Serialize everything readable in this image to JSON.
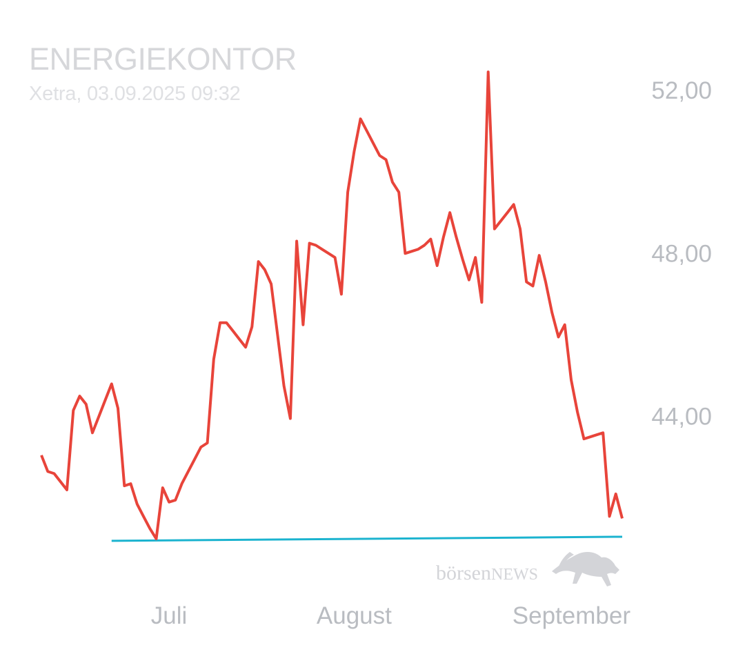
{
  "header": {
    "title": "ENERGIEKONTOR",
    "subtitle": "Xetra, 03.09.2025 09:32"
  },
  "watermark": {
    "text_prefix": "börsen",
    "text_suffix": "NEWS",
    "icon": "bull-icon"
  },
  "colors": {
    "price_line": "#e8443a",
    "baseline": "#1bb3cf",
    "axis_text": "#b9bcc1"
  },
  "chart_data": {
    "type": "line",
    "title": "ENERGIEKONTOR",
    "subtitle": "Xetra, 03.09.2025 09:32",
    "xlabel": "",
    "ylabel": "",
    "ylim": [
      40.0,
      53.2
    ],
    "y_ticks": [
      {
        "value": 44,
        "label": "44,00"
      },
      {
        "value": 48,
        "label": "48,00"
      },
      {
        "value": 52,
        "label": "52,00"
      }
    ],
    "x_ticks": [
      {
        "index": 20,
        "label": "Juli"
      },
      {
        "index": 49,
        "label": "August"
      },
      {
        "index": 73,
        "label": "September"
      }
    ],
    "grid": false,
    "legend": "none",
    "series": [
      {
        "color": "#e8443a",
        "values": [
          43.05,
          42.65,
          42.6,
          42.4,
          42.2,
          44.15,
          44.5,
          44.3,
          43.6,
          44.0,
          44.4,
          44.8,
          44.2,
          42.3,
          42.35,
          41.85,
          41.55,
          41.25,
          41.0,
          42.25,
          41.9,
          41.95,
          42.35,
          42.65,
          42.95,
          43.25,
          43.35,
          45.4,
          46.3,
          46.3,
          46.1,
          45.9,
          45.7,
          46.2,
          47.8,
          47.6,
          47.25,
          46.0,
          44.75,
          43.95,
          48.3,
          46.25,
          48.25,
          48.2,
          48.1,
          48.0,
          47.9,
          47.0,
          49.5,
          50.5,
          51.3,
          51.0,
          50.7,
          50.4,
          50.3,
          49.75,
          49.5,
          48.0,
          48.05,
          48.1,
          48.2,
          48.35,
          47.7,
          48.4,
          49.0,
          48.4,
          47.85,
          47.35,
          47.9,
          46.8,
          52.45,
          48.6,
          48.8,
          49.0,
          49.2,
          48.6,
          47.3,
          47.2,
          47.95,
          47.3,
          46.55,
          45.95,
          46.25,
          44.9,
          44.1,
          43.45,
          43.5,
          43.55,
          43.6,
          41.55,
          42.1,
          41.5
        ]
      }
    ],
    "baseline": {
      "start_index": 11,
      "end_index": 91,
      "start_value": 40.95,
      "end_value": 41.05
    }
  }
}
